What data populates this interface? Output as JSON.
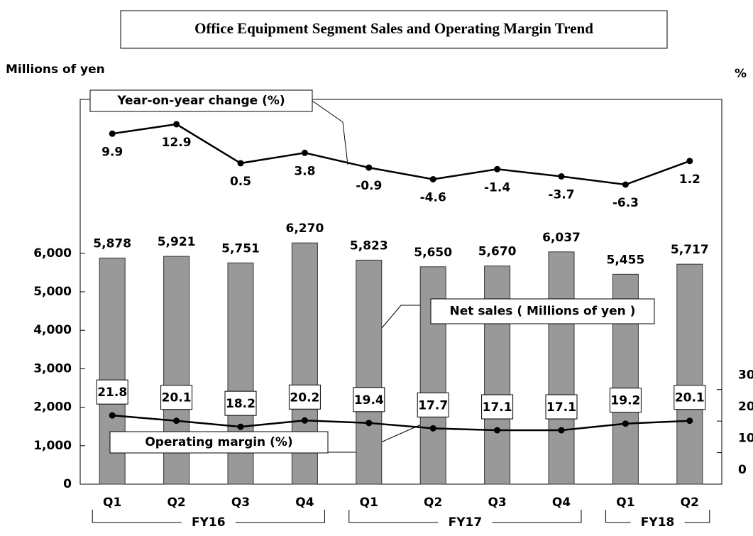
{
  "chart_data": {
    "type": "bar",
    "title": "Office Equipment Segment Sales and Operating Margin Trend",
    "y_label": "Millions of yen",
    "y2_label": "%",
    "categories": [
      "Q1",
      "Q2",
      "Q3",
      "Q4",
      "Q1",
      "Q2",
      "Q3",
      "Q4",
      "Q1",
      "Q2"
    ],
    "fiscal_years": [
      "FY16",
      null,
      null,
      null,
      "FY17",
      null,
      null,
      null,
      "FY18",
      null
    ],
    "series": [
      {
        "name": "Net sales ( Millions of yen )",
        "type": "bar",
        "color": "#999999",
        "values": [
          5878,
          5921,
          5751,
          6270,
          5823,
          5650,
          5670,
          6037,
          5455,
          5717
        ],
        "value_labels": [
          "5,878",
          "5,921",
          "5,751",
          "6,270",
          "5,823",
          "5,650",
          "5,670",
          "6,037",
          "5,455",
          "5,717"
        ]
      },
      {
        "name": "Year-on-year change (%)",
        "type": "line",
        "axis": "y3",
        "color": "#000000",
        "values": [
          9.9,
          12.9,
          0.5,
          3.8,
          -0.9,
          -4.6,
          -1.4,
          -3.7,
          -6.3,
          1.2
        ]
      },
      {
        "name": "Operating margin (%)",
        "type": "line",
        "axis": "y2",
        "color": "#000000",
        "values": [
          21.8,
          20.1,
          18.2,
          20.2,
          19.4,
          17.7,
          17.1,
          17.1,
          19.2,
          20.1
        ]
      }
    ],
    "ylim": [
      0,
      10000
    ],
    "yticks": [
      {
        "value": 0,
        "label": "0"
      },
      {
        "value": 1000,
        "label": "1,000"
      },
      {
        "value": 2000,
        "label": "2,000"
      },
      {
        "value": 3000,
        "label": "3,000"
      },
      {
        "value": 4000,
        "label": "4,000"
      },
      {
        "value": 5000,
        "label": "5,000"
      },
      {
        "value": 6000,
        "label": "6,000"
      }
    ],
    "y2lim": [
      0,
      122
    ],
    "y2ticks": [
      0,
      10,
      20,
      30
    ],
    "y3lim": [
      -101.6,
      20.8
    ]
  }
}
